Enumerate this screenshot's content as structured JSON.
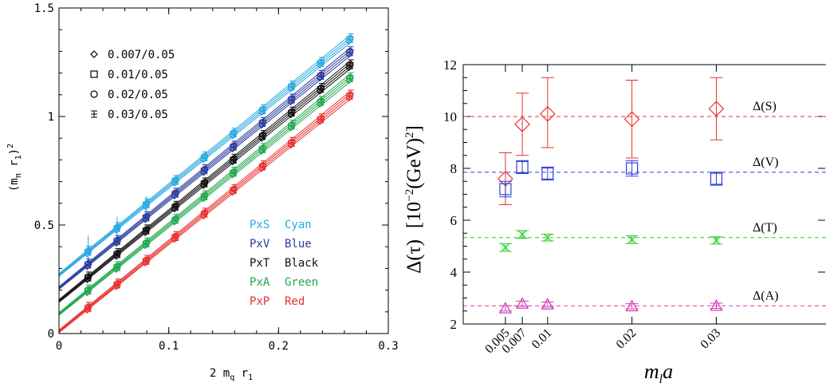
{
  "chart_data": [
    {
      "type": "scatter",
      "xlabel": "2 m",
      "xlabel_sub": "q",
      "xlabel_tail": " r",
      "xlabel_sub2": "1",
      "ylabel": "(m",
      "ylabel_sub": "π",
      "ylabel_mid": " r",
      "ylabel_sub2": "1",
      "ylabel_tail": ")",
      "ylabel_sup": "2",
      "xlim": [
        0,
        0.3
      ],
      "ylim": [
        0,
        1.5
      ],
      "xticks": [
        {
          "v": 0,
          "label": "0"
        },
        {
          "v": 0.1,
          "label": "0.1"
        },
        {
          "v": 0.2,
          "label": "0.2"
        },
        {
          "v": 0.3,
          "label": "0.3"
        }
      ],
      "yticks": [
        {
          "v": 0,
          "label": "0"
        },
        {
          "v": 0.5,
          "label": "0.5"
        },
        {
          "v": 1.0,
          "label": "1"
        },
        {
          "v": 1.5,
          "label": "1.5"
        }
      ],
      "x": [
        0.0265,
        0.053,
        0.0795,
        0.106,
        0.1325,
        0.159,
        0.1855,
        0.212,
        0.2385,
        0.265
      ],
      "legend_markers": [
        {
          "marker": "diamond",
          "label": "0.007/0.05"
        },
        {
          "marker": "square",
          "label": "0.01/0.05"
        },
        {
          "marker": "circle",
          "label": "0.02/0.05"
        },
        {
          "marker": "plus",
          "label": "0.03/0.05"
        }
      ],
      "series": [
        {
          "name": "PxS",
          "color_label": "Cyan",
          "color": "#29a9e1",
          "intercept": 0.27,
          "slope": 4.1,
          "values": [
            0.378,
            0.487,
            0.596,
            0.704,
            0.813,
            0.922,
            1.03,
            1.139,
            1.248,
            1.357
          ]
        },
        {
          "name": "PxV",
          "color_label": "Blue",
          "color": "#2c3c9f",
          "intercept": 0.21,
          "slope": 4.1,
          "values": [
            0.319,
            0.427,
            0.536,
            0.645,
            0.753,
            0.862,
            0.971,
            1.079,
            1.188,
            1.297
          ]
        },
        {
          "name": "PxT",
          "color_label": "Black",
          "color": "#111111",
          "intercept": 0.15,
          "slope": 4.1,
          "values": [
            0.259,
            0.367,
            0.476,
            0.585,
            0.693,
            0.802,
            0.911,
            1.019,
            1.128,
            1.237
          ]
        },
        {
          "name": "PxA",
          "color_label": "Green",
          "color": "#20a84f",
          "intercept": 0.09,
          "slope": 4.1,
          "values": [
            0.199,
            0.307,
            0.416,
            0.525,
            0.633,
            0.742,
            0.851,
            0.959,
            1.068,
            1.177
          ]
        },
        {
          "name": "PxP",
          "color_label": "Red",
          "color": "#e8312f",
          "intercept": 0.01,
          "slope": 4.1,
          "values": [
            0.119,
            0.227,
            0.336,
            0.445,
            0.553,
            0.662,
            0.771,
            0.879,
            0.988,
            1.097
          ]
        }
      ],
      "grid": false,
      "legend_position": "top-left and bottom-right"
    },
    {
      "type": "scatter",
      "xlabel": "m",
      "xlabel_sub": "l",
      "xlabel_tail": "a",
      "ylabel": "Δ(τ)",
      "ylabel_units": "[10",
      "ylabel_units_sup": "−2",
      "ylabel_units_tail": "(GeV)",
      "ylabel_units_sup2": "2",
      "ylabel_units_end": "]",
      "xlim": [
        0,
        0.04
      ],
      "ylim": [
        2,
        12
      ],
      "xticks": [
        {
          "v": 0.005,
          "label": "0.005"
        },
        {
          "v": 0.007,
          "label": "0.007"
        },
        {
          "v": 0.01,
          "label": "0.01"
        },
        {
          "v": 0.02,
          "label": "0.02"
        },
        {
          "v": 0.03,
          "label": "0.03"
        }
      ],
      "yticks": [
        {
          "v": 2,
          "label": "2"
        },
        {
          "v": 4,
          "label": "4"
        },
        {
          "v": 6,
          "label": "6"
        },
        {
          "v": 8,
          "label": "8"
        },
        {
          "v": 10,
          "label": "10"
        },
        {
          "v": 12,
          "label": "12"
        }
      ],
      "series": [
        {
          "name": "Δ(S)",
          "marker": "diamond",
          "color": "#e8312f",
          "reference": 10.0,
          "points": [
            {
              "x": 0.005,
              "y": 7.6,
              "err": [
                6.6,
                8.6
              ]
            },
            {
              "x": 0.007,
              "y": 9.7,
              "err": [
                8.5,
                10.9
              ]
            },
            {
              "x": 0.01,
              "y": 10.1,
              "err": [
                8.8,
                11.5
              ]
            },
            {
              "x": 0.02,
              "y": 9.9,
              "err": [
                8.4,
                11.4
              ]
            },
            {
              "x": 0.03,
              "y": 10.3,
              "err": [
                9.1,
                11.5
              ]
            }
          ]
        },
        {
          "name": "Δ(V)",
          "marker": "square",
          "color": "#2b3fd6",
          "reference": 7.85,
          "points": [
            {
              "x": 0.005,
              "y": 7.2,
              "err": [
                6.9,
                7.5
              ]
            },
            {
              "x": 0.007,
              "y": 8.05,
              "err": [
                7.8,
                8.3
              ]
            },
            {
              "x": 0.01,
              "y": 7.8,
              "err": [
                7.55,
                8.05
              ]
            },
            {
              "x": 0.02,
              "y": 8.0,
              "err": [
                7.7,
                8.3
              ]
            },
            {
              "x": 0.03,
              "y": 7.6,
              "err": [
                7.35,
                7.85
              ]
            }
          ]
        },
        {
          "name": "Δ(T)",
          "marker": "x",
          "color": "#2fd02f",
          "reference": 5.33,
          "points": [
            {
              "x": 0.005,
              "y": 4.95,
              "err": [
                4.8,
                5.1
              ]
            },
            {
              "x": 0.007,
              "y": 5.45,
              "err": [
                5.3,
                5.6
              ]
            },
            {
              "x": 0.01,
              "y": 5.33,
              "err": [
                5.2,
                5.46
              ]
            },
            {
              "x": 0.02,
              "y": 5.25,
              "err": [
                5.1,
                5.4
              ]
            },
            {
              "x": 0.03,
              "y": 5.22,
              "err": [
                5.08,
                5.36
              ]
            }
          ]
        },
        {
          "name": "Δ(A)",
          "marker": "triangle",
          "color": "#d43fb4",
          "reference": 2.7,
          "points": [
            {
              "x": 0.005,
              "y": 2.6,
              "err": [
                2.5,
                2.7
              ]
            },
            {
              "x": 0.007,
              "y": 2.78,
              "err": [
                2.68,
                2.88
              ]
            },
            {
              "x": 0.01,
              "y": 2.75,
              "err": [
                2.65,
                2.85
              ]
            },
            {
              "x": 0.02,
              "y": 2.68,
              "err": [
                2.58,
                2.78
              ]
            },
            {
              "x": 0.03,
              "y": 2.7,
              "err": [
                2.6,
                2.8
              ]
            }
          ]
        }
      ],
      "grid": false,
      "legend_position": "inline labels right"
    }
  ]
}
